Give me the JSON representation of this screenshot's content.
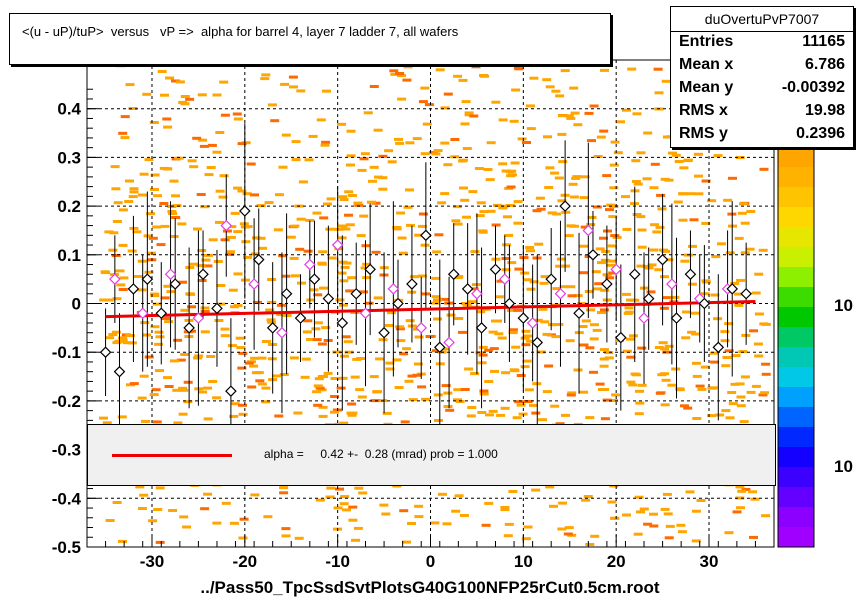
{
  "title": "<(u - uP)/tuP>  versus   vP =>  alpha for barrel 4, layer 7 ladder 7, all wafers",
  "footer": "../Pass50_TpcSsdSvtPlotsG40G100NFP25rCut0.5cm.root",
  "stats": {
    "name": "duOvertuPvP7007",
    "rows": [
      {
        "label": "Entries",
        "value": "11165"
      },
      {
        "label": "Mean x",
        "value": "6.786"
      },
      {
        "label": "Mean y",
        "value": "-0.00392"
      },
      {
        "label": "RMS x",
        "value": "19.98"
      },
      {
        "label": "RMS y",
        "value": "0.2396"
      }
    ]
  },
  "fit_legend": "alpha =     0.42 +-  0.28 (mrad) prob = 1.000",
  "palette_labels": [
    "10",
    "10"
  ],
  "colors": {
    "heat_low": "#ffa500",
    "heat_high": "#ff6a00",
    "profile_black": "#000000",
    "profile_magenta": "#e040e0",
    "fit_line": "#ee0000"
  },
  "chart_data": {
    "type": "scatter",
    "title": "<(u - uP)/tuP>  versus   vP =>  alpha for barrel 4, layer 7 ladder 7, all wafers",
    "xlabel": "",
    "ylabel": "",
    "xlim": [
      -37,
      37
    ],
    "ylim": [
      -0.5,
      0.5
    ],
    "x_ticks": [
      -30,
      -20,
      -10,
      0,
      10,
      20,
      30
    ],
    "y_ticks": [
      -0.5,
      -0.4,
      -0.3,
      -0.2,
      -0.1,
      0,
      0.1,
      0.2,
      0.3,
      0.4
    ],
    "grid": true,
    "fit": {
      "x": [
        -35,
        35
      ],
      "y": [
        -0.027,
        0.004
      ]
    },
    "profile_black": {
      "x": [
        -35.0,
        -33.5,
        -32.0,
        -30.5,
        -29.0,
        -27.5,
        -26.0,
        -24.5,
        -23.0,
        -21.5,
        -20.0,
        -18.5,
        -17.0,
        -15.5,
        -14.0,
        -12.5,
        -11.0,
        -9.5,
        -8.0,
        -6.5,
        -5.0,
        -3.5,
        -2.0,
        -0.5,
        1.0,
        2.5,
        4.0,
        5.5,
        7.0,
        8.5,
        10.0,
        11.5,
        13.0,
        14.5,
        16.0,
        17.5,
        19.0,
        20.5,
        22.0,
        23.5,
        25.0,
        26.5,
        28.0,
        29.5,
        31.0,
        32.5,
        34.0
      ],
      "y": [
        -0.1,
        -0.14,
        0.03,
        0.05,
        -0.02,
        0.04,
        -0.05,
        0.06,
        -0.01,
        -0.18,
        0.19,
        0.09,
        -0.05,
        0.02,
        -0.03,
        0.05,
        0.01,
        -0.04,
        0.02,
        0.07,
        -0.06,
        0.0,
        0.04,
        0.14,
        -0.09,
        0.06,
        0.03,
        -0.05,
        0.07,
        0.0,
        -0.03,
        -0.08,
        0.05,
        0.2,
        -0.02,
        0.1,
        0.04,
        -0.07,
        0.06,
        0.01,
        0.09,
        -0.03,
        0.06,
        0.0,
        -0.09,
        0.03,
        0.02
      ]
    },
    "profile_magenta": {
      "x": [
        -34.0,
        -31.0,
        -28.0,
        -25.0,
        -22.0,
        -19.0,
        -16.0,
        -13.0,
        -10.0,
        -7.0,
        -4.0,
        -1.0,
        2.0,
        5.0,
        8.0,
        11.0,
        14.0,
        17.0,
        20.0,
        23.0,
        26.0,
        29.0,
        32.0
      ],
      "y": [
        0.05,
        -0.02,
        0.06,
        -0.03,
        0.16,
        0.04,
        -0.06,
        0.08,
        0.12,
        -0.02,
        0.03,
        -0.05,
        -0.08,
        0.02,
        0.05,
        -0.04,
        0.02,
        0.15,
        0.07,
        -0.03,
        0.04,
        0.01,
        0.03
      ]
    }
  }
}
